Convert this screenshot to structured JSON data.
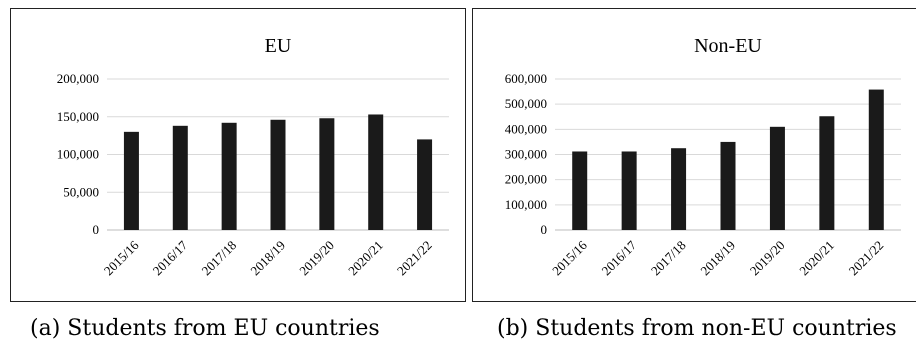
{
  "chart_data": [
    {
      "type": "bar",
      "title": "EU",
      "categories": [
        "2015/16",
        "2016/17",
        "2017/18",
        "2018/19",
        "2019/20",
        "2020/21",
        "2021/22"
      ],
      "values": [
        130000,
        138000,
        142000,
        146000,
        148000,
        153000,
        120000
      ],
      "ylim": [
        0,
        200000
      ],
      "yticks": [
        "0",
        "50,000",
        "100,000",
        "150,000",
        "200,000"
      ],
      "grid": true,
      "bar_color": "#1a1a1a"
    },
    {
      "type": "bar",
      "title": "Non-EU",
      "categories": [
        "2015/16",
        "2016/17",
        "2017/18",
        "2018/19",
        "2019/20",
        "2020/21",
        "2021/22"
      ],
      "values": [
        312000,
        312000,
        325000,
        350000,
        410000,
        452000,
        558000
      ],
      "ylim": [
        0,
        600000
      ],
      "yticks": [
        "0",
        "100,000",
        "200,000",
        "300,000",
        "400,000",
        "500,000",
        "600,000"
      ],
      "grid": true,
      "bar_color": "#1a1a1a"
    }
  ],
  "captions": {
    "a": "(a) Students from EU countries",
    "b": "(b) Students from non-EU countries"
  }
}
